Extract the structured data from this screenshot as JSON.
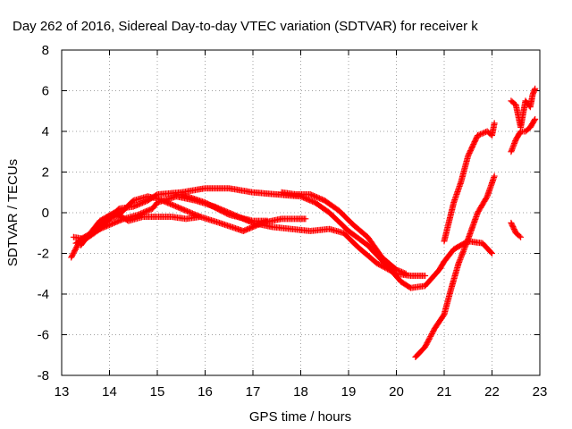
{
  "chart_data": {
    "type": "scatter",
    "title": "Day 262 of 2016, Sidereal Day-to-day VTEC variation (SDTVAR) for receiver k",
    "xlabel": "GPS time / hours",
    "ylabel": "SDTVAR / TECUs",
    "xlim": [
      13,
      23
    ],
    "ylim": [
      -8,
      8
    ],
    "xticks": [
      "13",
      "14",
      "15",
      "16",
      "17",
      "18",
      "19",
      "20",
      "21",
      "22",
      "23"
    ],
    "yticks": [
      "-8",
      "-6",
      "-4",
      "-2",
      "0",
      "2",
      "4",
      "6",
      "8"
    ],
    "grid": true,
    "marker": "+",
    "color": "#ff0000",
    "series": [
      {
        "points": [
          [
            13.2,
            -2.2
          ],
          [
            13.4,
            -1.3
          ],
          [
            13.7,
            -0.9
          ],
          [
            14.0,
            -0.6
          ],
          [
            14.3,
            -0.3
          ],
          [
            14.6,
            -0.1
          ],
          [
            14.9,
            0.2
          ],
          [
            15.0,
            0.5
          ],
          [
            15.4,
            0.8
          ],
          [
            15.8,
            0.6
          ],
          [
            16.2,
            0.3
          ],
          [
            16.6,
            -0.1
          ],
          [
            17.0,
            -0.5
          ],
          [
            17.4,
            -0.7
          ],
          [
            17.8,
            -0.8
          ],
          [
            18.2,
            -0.9
          ],
          [
            18.6,
            -0.8
          ],
          [
            18.9,
            -1.0
          ],
          [
            19.2,
            -1.7
          ],
          [
            19.6,
            -2.5
          ],
          [
            20.0,
            -3.0
          ],
          [
            20.3,
            -3.1
          ],
          [
            20.6,
            -3.1
          ]
        ]
      },
      {
        "points": [
          [
            13.25,
            -1.2
          ],
          [
            13.5,
            -1.3
          ],
          [
            13.8,
            -0.8
          ],
          [
            14.0,
            -0.3
          ],
          [
            14.2,
            0.2
          ],
          [
            14.5,
            0.3
          ],
          [
            14.8,
            0.6
          ],
          [
            15.0,
            0.9
          ],
          [
            15.5,
            1.0
          ],
          [
            16.0,
            1.2
          ],
          [
            16.5,
            1.2
          ],
          [
            17.0,
            1.0
          ],
          [
            17.5,
            0.9
          ],
          [
            18.0,
            0.8
          ],
          [
            18.3,
            0.5
          ],
          [
            18.6,
            0.0
          ],
          [
            19.0,
            -0.9
          ],
          [
            19.4,
            -1.6
          ],
          [
            19.8,
            -2.6
          ],
          [
            20.1,
            -3.4
          ],
          [
            20.3,
            -3.7
          ],
          [
            20.6,
            -3.6
          ],
          [
            20.9,
            -2.8
          ],
          [
            21.0,
            -2.4
          ],
          [
            21.2,
            -1.8
          ],
          [
            21.5,
            -1.4
          ],
          [
            21.8,
            -1.5
          ],
          [
            22.0,
            -2.0
          ]
        ]
      },
      {
        "points": [
          [
            13.3,
            -1.5
          ],
          [
            13.6,
            -1.1
          ],
          [
            13.9,
            -0.4
          ],
          [
            14.2,
            -0.1
          ],
          [
            14.5,
            0.6
          ],
          [
            14.8,
            0.8
          ],
          [
            15.0,
            0.7
          ],
          [
            15.3,
            0.4
          ],
          [
            15.6,
            0.1
          ],
          [
            15.9,
            -0.2
          ],
          [
            16.3,
            -0.5
          ],
          [
            16.8,
            -0.9
          ],
          [
            17.2,
            -0.5
          ],
          [
            17.6,
            -0.3
          ],
          [
            17.9,
            -0.3
          ],
          [
            18.1,
            -0.3
          ]
        ]
      },
      {
        "points": [
          [
            13.4,
            -1.6
          ],
          [
            13.8,
            -0.4
          ],
          [
            14.1,
            0.0
          ],
          [
            14.4,
            -0.4
          ],
          [
            14.7,
            -0.2
          ],
          [
            15.0,
            -0.2
          ],
          [
            15.3,
            -0.2
          ],
          [
            15.6,
            -0.3
          ],
          [
            15.9,
            -0.2
          ]
        ]
      },
      {
        "points": [
          [
            17.6,
            1.0
          ],
          [
            17.9,
            0.9
          ],
          [
            18.2,
            0.9
          ],
          [
            18.5,
            0.6
          ],
          [
            18.8,
            0.1
          ],
          [
            19.1,
            -0.6
          ],
          [
            19.4,
            -1.2
          ],
          [
            19.7,
            -2.2
          ],
          [
            20.0,
            -2.8
          ],
          [
            20.2,
            -3.0
          ]
        ]
      },
      {
        "points": [
          [
            15.5,
            0.9
          ],
          [
            16.0,
            0.5
          ],
          [
            16.5,
            -0.1
          ],
          [
            17.0,
            -0.4
          ],
          [
            17.3,
            -0.4
          ]
        ]
      },
      {
        "points": [
          [
            21.0,
            -1.4
          ],
          [
            21.2,
            0.5
          ],
          [
            21.35,
            1.5
          ],
          [
            21.5,
            2.8
          ],
          [
            21.7,
            3.8
          ],
          [
            21.9,
            4.0
          ],
          [
            22.0,
            3.8
          ],
          [
            22.05,
            4.4
          ]
        ]
      },
      {
        "points": [
          [
            20.4,
            -7.1
          ],
          [
            20.6,
            -6.6
          ],
          [
            20.8,
            -5.7
          ],
          [
            21.0,
            -5.0
          ],
          [
            21.15,
            -3.7
          ],
          [
            21.3,
            -2.5
          ],
          [
            21.5,
            -1.3
          ],
          [
            21.7,
            0.0
          ],
          [
            21.9,
            0.8
          ],
          [
            22.05,
            1.8
          ]
        ]
      },
      {
        "points": [
          [
            22.4,
            3.0
          ],
          [
            22.5,
            3.6
          ],
          [
            22.6,
            4.0
          ],
          [
            22.7,
            4.0
          ],
          [
            22.8,
            4.2
          ],
          [
            22.9,
            4.6
          ]
        ]
      },
      {
        "points": [
          [
            22.4,
            5.5
          ],
          [
            22.5,
            5.3
          ],
          [
            22.6,
            4.2
          ],
          [
            22.7,
            5.5
          ],
          [
            22.8,
            5.2
          ],
          [
            22.85,
            5.8
          ],
          [
            22.9,
            6.1
          ]
        ]
      },
      {
        "points": [
          [
            22.4,
            -0.5
          ],
          [
            22.5,
            -1.0
          ],
          [
            22.6,
            -1.2
          ]
        ]
      }
    ]
  }
}
